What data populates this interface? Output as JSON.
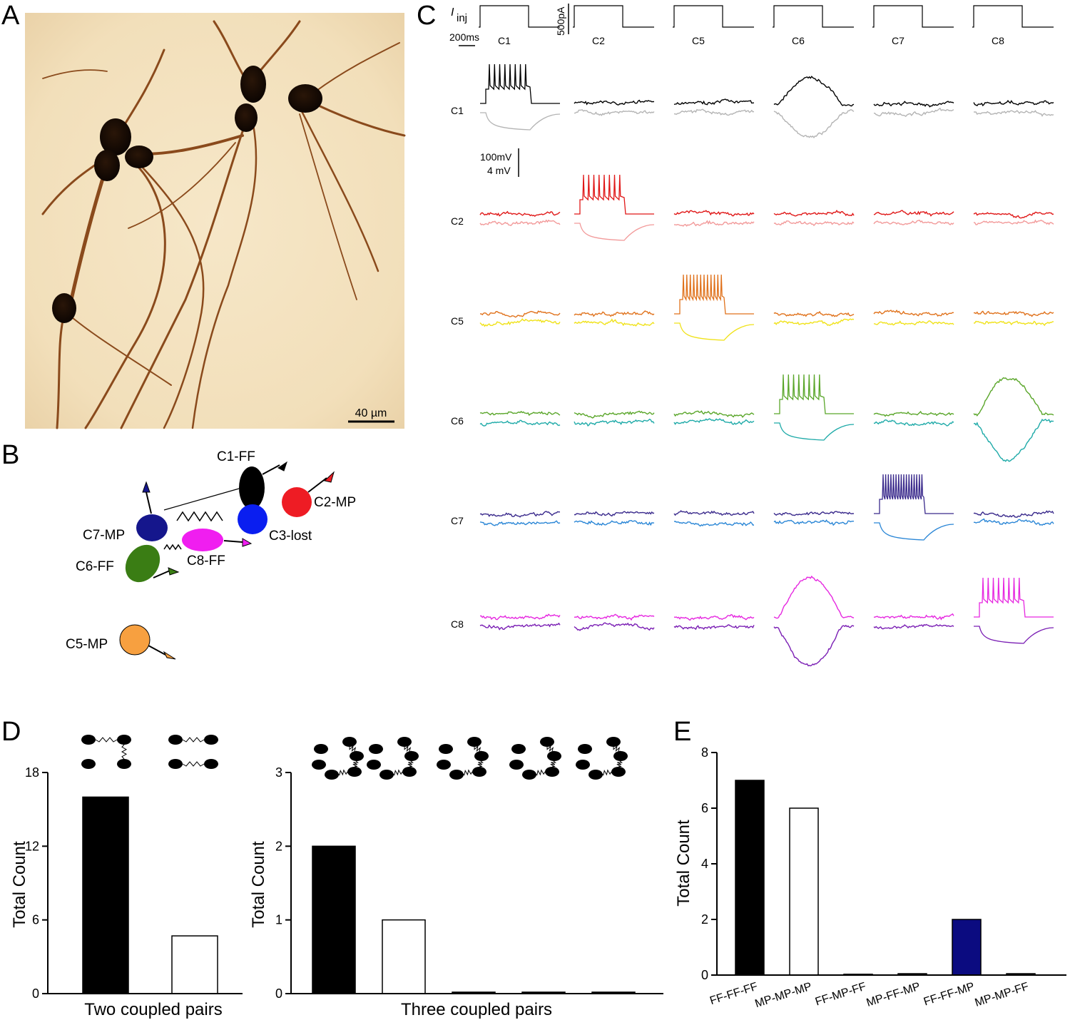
{
  "panel_labels": {
    "a": "A",
    "b": "B",
    "c": "C",
    "d": "D",
    "e": "E"
  },
  "panel_a": {
    "scale_bar": "40 µm"
  },
  "panel_b": {
    "cells": [
      {
        "label": "C1-FF",
        "color": "#000000"
      },
      {
        "label": "C2-MP",
        "color": "#ee1c24"
      },
      {
        "label": "C3-lost",
        "color": "#0a1ef0"
      },
      {
        "label": "C7-MP",
        "color": "#15168c"
      },
      {
        "label": "C8-FF",
        "color": "#f01ef0"
      },
      {
        "label": "C6-FF",
        "color": "#3a7d14"
      },
      {
        "label": "C5-MP",
        "color": "#f7a040"
      }
    ]
  },
  "panel_c": {
    "iinj_label": "I",
    "iinj_sub": "inj",
    "time_scale": "200ms",
    "current_scale": "500pA",
    "voltage_scale_1": "100mV",
    "voltage_scale_2": "4 mV",
    "columns": [
      "C1",
      "C2",
      "C5",
      "C6",
      "C7",
      "C8"
    ],
    "rows": [
      {
        "label": "C1",
        "dep_color": "#000000",
        "hyp_color": "#b4b4b4"
      },
      {
        "label": "C2",
        "dep_color": "#e01818",
        "hyp_color": "#f29a9a"
      },
      {
        "label": "C5",
        "dep_color": "#e0721c",
        "hyp_color": "#f0e21a"
      },
      {
        "label": "C6",
        "dep_color": "#5aa62a",
        "hyp_color": "#1eaaa8"
      },
      {
        "label": "C7",
        "dep_color": "#3a2a8c",
        "hyp_color": "#2a86d6"
      },
      {
        "label": "C8",
        "dep_color": "#e628e0",
        "hyp_color": "#7a1eb4"
      }
    ]
  },
  "chart_data": [
    {
      "type": "bar",
      "panel": "D-left",
      "categories": [
        "",
        ""
      ],
      "values": [
        16,
        4.7
      ],
      "bar_fill": [
        "#000000",
        "#ffffff"
      ],
      "xlabel": "Two coupled pairs",
      "ylabel": "Total Count",
      "ylim": [
        0,
        18
      ],
      "yticks": [
        "0",
        "6",
        "12",
        "18"
      ]
    },
    {
      "type": "bar",
      "panel": "D-right",
      "categories": [
        "",
        "",
        "",
        "",
        ""
      ],
      "values": [
        2,
        1,
        0.02,
        0.02,
        0.02
      ],
      "bar_fill": [
        "#000000",
        "#ffffff",
        "#000000",
        "#000000",
        "#000000"
      ],
      "xlabel": "Three coupled pairs",
      "ylabel": "Total Count",
      "ylim": [
        0,
        3
      ],
      "yticks": [
        "0",
        "1",
        "2",
        "3"
      ]
    },
    {
      "type": "bar",
      "panel": "E",
      "categories": [
        "FF-FF-FF",
        "MP-MP-MP",
        "FF-MP-FF",
        "MP-FF-MP",
        "FF-FF-MP",
        "MP-MP-FF"
      ],
      "values": [
        7,
        6,
        0.03,
        0.05,
        2,
        0.05
      ],
      "bar_fill": [
        "#000000",
        "#ffffff",
        "#000000",
        "#000000",
        "#0b0b80",
        "#000000"
      ],
      "xlabel": "",
      "ylabel": "Total Count",
      "ylim": [
        0,
        8
      ],
      "yticks": [
        "0",
        "2",
        "4",
        "6",
        "8"
      ]
    }
  ]
}
